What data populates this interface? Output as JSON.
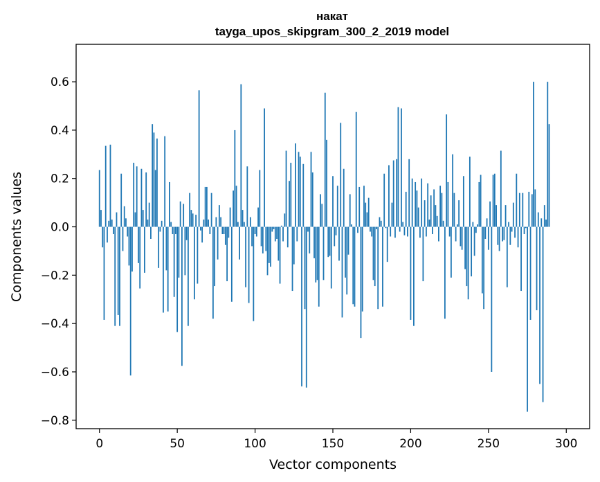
{
  "chart_data": {
    "type": "bar",
    "title": "накат",
    "subtitle": "tayga_upos_skipgram_300_2_2019 model",
    "xlabel": "Vector components",
    "ylabel": "Components values",
    "xlim": [
      -15,
      315
    ],
    "ylim": [
      -0.835,
      0.755
    ],
    "xticks": [
      0,
      50,
      100,
      150,
      200,
      250,
      300
    ],
    "xtick_labels": [
      "0",
      "50",
      "100",
      "150",
      "200",
      "250",
      "300"
    ],
    "yticks": [
      -0.8,
      -0.6,
      -0.4,
      -0.2,
      0.0,
      0.2,
      0.4,
      0.6
    ],
    "ytick_labels": [
      "−0.8",
      "−0.6",
      "−0.4",
      "−0.2",
      "0.0",
      "0.2",
      "0.4",
      "0.6"
    ],
    "grid": false,
    "color": "#1f77b4",
    "x": "0..299",
    "values": [
      0.235,
      0.07,
      -0.085,
      -0.385,
      0.335,
      -0.065,
      0.025,
      0.34,
      0.03,
      -0.03,
      -0.41,
      0.06,
      -0.365,
      -0.41,
      0.22,
      -0.1,
      0.085,
      0.035,
      -0.04,
      -0.16,
      -0.615,
      -0.185,
      0.265,
      0.06,
      0.25,
      -0.15,
      -0.255,
      0.24,
      0.07,
      -0.19,
      0.225,
      0.03,
      0.1,
      -0.05,
      0.425,
      0.39,
      0.235,
      0.365,
      -0.17,
      -0.02,
      0.025,
      -0.355,
      0.375,
      -0.18,
      -0.35,
      0.185,
      0.02,
      -0.03,
      -0.29,
      -0.03,
      -0.435,
      -0.21,
      0.105,
      -0.575,
      0.095,
      -0.2,
      -0.055,
      -0.41,
      0.14,
      0.07,
      0.055,
      -0.3,
      0.05,
      -0.235,
      0.565,
      -0.015,
      -0.065,
      0.03,
      0.165,
      0.165,
      0.03,
      -0.03,
      0.14,
      -0.38,
      -0.245,
      0.04,
      -0.135,
      0.09,
      0.04,
      -0.03,
      -0.03,
      -0.075,
      -0.225,
      -0.045,
      0.08,
      -0.31,
      0.15,
      0.4,
      0.17,
      0.02,
      -0.135,
      0.59,
      0.07,
      0.02,
      -0.25,
      0.25,
      -0.315,
      0.04,
      -0.08,
      -0.39,
      -0.03,
      -0.04,
      0.08,
      0.235,
      -0.08,
      -0.11,
      0.49,
      -0.1,
      -0.2,
      -0.15,
      -0.165,
      -0.02,
      -0.01,
      -0.06,
      -0.05,
      -0.14,
      -0.235,
      0.005,
      -0.06,
      0.055,
      0.315,
      -0.085,
      0.19,
      0.265,
      -0.265,
      -0.155,
      0.345,
      -0.06,
      0.31,
      0.29,
      -0.66,
      0.26,
      -0.34,
      -0.665,
      -0.02,
      -0.11,
      0.31,
      0.225,
      -0.13,
      -0.23,
      -0.22,
      -0.33,
      0.135,
      0.095,
      -0.22,
      0.555,
      0.36,
      -0.125,
      -0.12,
      -0.255,
      0.21,
      -0.08,
      -0.035,
      0.17,
      -0.14,
      0.43,
      -0.375,
      0.24,
      -0.21,
      -0.28,
      -0.115,
      0.135,
      0.01,
      -0.32,
      -0.33,
      0.475,
      -0.025,
      0.165,
      -0.46,
      -0.35,
      0.17,
      0.1,
      0.06,
      0.12,
      -0.02,
      -0.04,
      -0.22,
      -0.245,
      -0.01,
      -0.34,
      0.04,
      0.025,
      -0.33,
      0.22,
      -0.005,
      -0.145,
      0.255,
      -0.04,
      0.1,
      0.275,
      -0.045,
      0.28,
      0.495,
      -0.02,
      0.49,
      0.02,
      -0.035,
      0.145,
      -0.04,
      0.28,
      -0.385,
      0.2,
      -0.41,
      0.185,
      0.15,
      0.08,
      -0.045,
      0.2,
      -0.225,
      0.11,
      -0.04,
      0.18,
      0.03,
      0.13,
      -0.03,
      0.155,
      0.09,
      0.045,
      -0.06,
      0.17,
      0.14,
      0.025,
      -0.38,
      0.465,
      0.185,
      -0.04,
      -0.21,
      0.3,
      0.14,
      -0.06,
      0.01,
      0.11,
      -0.08,
      -0.095,
      0.21,
      -0.175,
      -0.245,
      -0.3,
      0.29,
      -0.205,
      0.02,
      -0.12,
      -0.025,
      0.01,
      0.185,
      0.215,
      -0.275,
      -0.34,
      -0.05,
      0.035,
      -0.095,
      0.105,
      -0.6,
      0.215,
      0.22,
      0.09,
      -0.075,
      -0.1,
      0.315,
      -0.06,
      -0.055,
      0.09,
      -0.25,
      0.02,
      -0.075,
      -0.02,
      0.1,
      -0.045,
      0.22,
      -0.085,
      0.14,
      -0.265,
      0.14,
      -0.03,
      -0.005,
      -0.765,
      0.145,
      -0.385,
      0.135,
      0.6,
      0.155,
      -0.345,
      0.06,
      -0.65,
      0.035,
      -0.725,
      0.09,
      0.03,
      0.6,
      0.425
    ]
  }
}
